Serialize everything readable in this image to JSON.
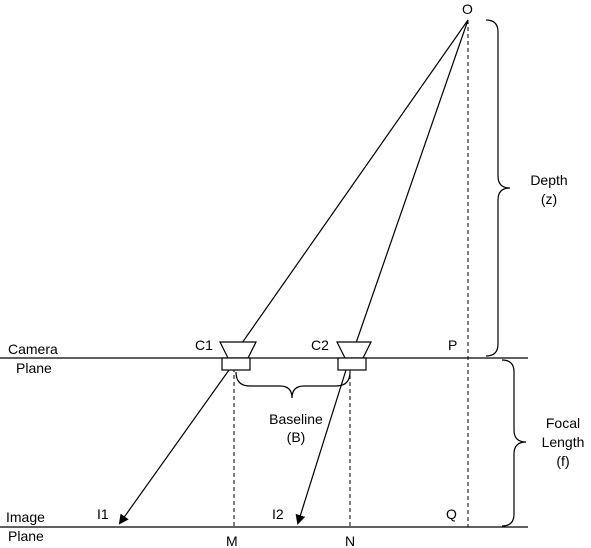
{
  "labels": {
    "object": "O",
    "camera1": "C1",
    "camera2": "C2",
    "point_p": "P",
    "point_q": "Q",
    "image1": "I1",
    "image2": "I2",
    "point_m": "M",
    "point_n": "N",
    "camera_plane_line1": "Camera",
    "camera_plane_line2": "Plane",
    "image_plane_line1": "Image",
    "image_plane_line2": "Plane",
    "baseline_line1": "Baseline",
    "baseline_line2": "(B)",
    "depth_line1": "Depth",
    "depth_line2": "(z)",
    "focal_line1": "Focal",
    "focal_line2": "Length",
    "focal_line3": "(f)"
  }
}
